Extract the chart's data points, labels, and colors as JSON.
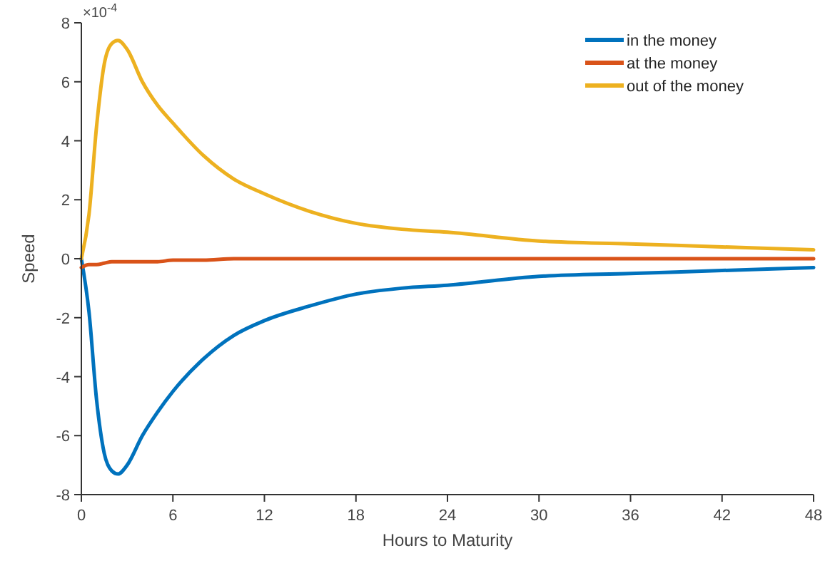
{
  "chart_data": {
    "type": "line",
    "xlabel": "Hours to Maturity",
    "ylabel": "Speed",
    "annotations": [
      "×10$^{-4}$"
    ],
    "xlim": [
      0,
      48
    ],
    "xticks": [
      0,
      6,
      12,
      18,
      24,
      30,
      36,
      42,
      48
    ],
    "ylim": [
      -8,
      8
    ],
    "yticks": [
      -8,
      -6,
      -4,
      -2,
      0,
      2,
      4,
      6,
      8
    ],
    "grid": false,
    "legend": "top right",
    "line_style": "solid",
    "marker": "none",
    "x": [
      0,
      0.5,
      1,
      1.5,
      2,
      2.4,
      3,
      4,
      5,
      6,
      8,
      10,
      12,
      15,
      18,
      21,
      24,
      30,
      36,
      42,
      48
    ],
    "series": [
      {
        "name": "in the money",
        "color": "#0072bd",
        "values": [
          0,
          -1.8,
          -4.8,
          -6.6,
          -7.2,
          -7.3,
          -7,
          -6,
          -5.2,
          -4.5,
          -3.4,
          -2.6,
          -2.1,
          -1.6,
          -1.2,
          -1,
          -0.9,
          -0.6,
          -0.5,
          -0.4,
          -0.3
        ]
      },
      {
        "name": "at the money",
        "color": "#d95319",
        "values": [
          -0.3,
          -0.2,
          -0.2,
          -0.15,
          -0.1,
          -0.1,
          -0.1,
          -0.1,
          -0.1,
          -0.05,
          -0.05,
          0,
          0,
          0,
          0,
          0,
          0,
          0,
          0,
          0,
          0
        ]
      },
      {
        "name": "out of the money",
        "color": "#edb120",
        "values": [
          0,
          1.5,
          4.5,
          6.6,
          7.3,
          7.4,
          7.1,
          6,
          5.2,
          4.6,
          3.5,
          2.7,
          2.2,
          1.6,
          1.2,
          1,
          0.9,
          0.6,
          0.5,
          0.4,
          0.3
        ]
      }
    ]
  }
}
